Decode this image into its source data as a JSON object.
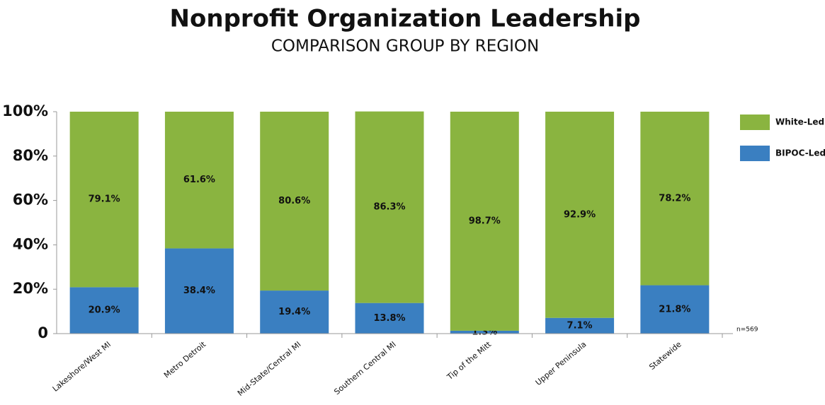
{
  "chart_data": {
    "type": "stacked_bar",
    "title": "Nonprofit Organization Leadership",
    "subtitle": "COMPARISON GROUP BY REGION",
    "categories": [
      "Lakeshore/West MI",
      "Metro Detroit",
      "Mid-State/Central MI",
      "Southern Central MI",
      "Tip of the Mitt",
      "Upper Peninsula",
      "Statewide"
    ],
    "series": [
      {
        "name": "BIPOC-Led",
        "color": "#3a7fc1",
        "values": [
          20.9,
          38.4,
          19.4,
          13.8,
          1.3,
          7.1,
          21.8
        ],
        "value_labels": [
          "20.9%",
          "38.4%",
          "19.4%",
          "13.8%",
          "1.3%",
          "7.1%",
          "21.8%"
        ]
      },
      {
        "name": "White-Led",
        "color": "#8ab440",
        "values": [
          79.1,
          61.6,
          80.6,
          86.3,
          98.7,
          92.9,
          78.2
        ],
        "value_labels": [
          "79.1%",
          "61.6%",
          "80.6%",
          "86.3%",
          "98.7%",
          "92.9%",
          "78.2%"
        ]
      }
    ],
    "ylim": [
      0,
      100
    ],
    "yticks": [
      0,
      {
        "value": 20,
        "label": "20%"
      },
      {
        "value": 40,
        "label": "40%"
      },
      {
        "value": 60,
        "label": "60%"
      },
      {
        "value": 80,
        "label": "80%"
      },
      {
        "value": 100,
        "label": "100%"
      }
    ],
    "annotation": "n=569",
    "legend": "right"
  }
}
